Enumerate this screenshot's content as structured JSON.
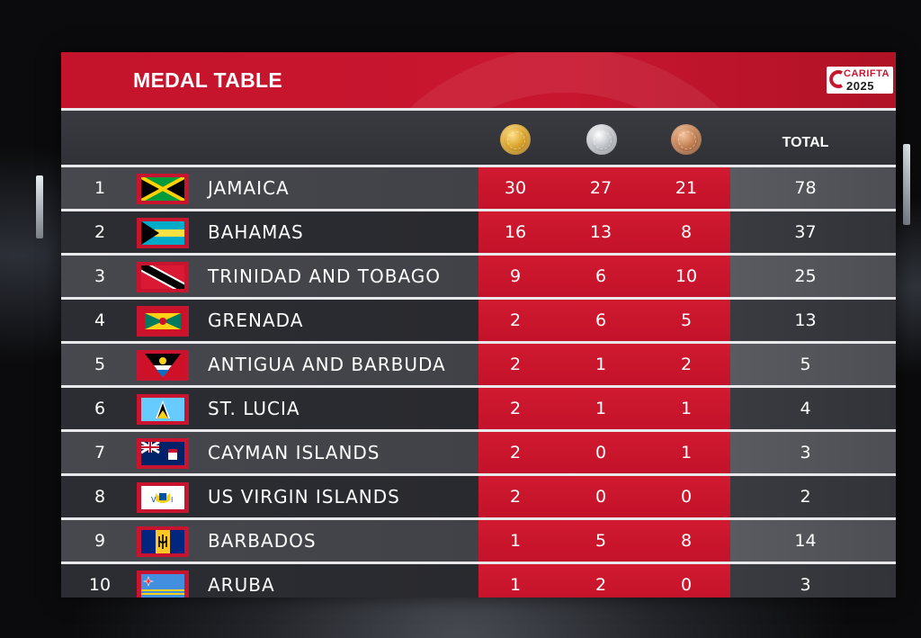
{
  "header": {
    "title": "MEDAL TABLE",
    "logo_top": "CARIFTA",
    "logo_year": "2025"
  },
  "columns": {
    "gold_icon": "gold-medal-icon",
    "silver_icon": "silver-medal-icon",
    "bronze_icon": "bronze-medal-icon",
    "total_label": "TOTAL"
  },
  "colors": {
    "accent_red": "#c8162f",
    "band_red": "#d01a30",
    "row_dark": "#2c2d32",
    "row_light": "#47484d"
  },
  "rows": [
    {
      "rank": "1",
      "country": "JAMAICA",
      "flag": "jamaica-flag-icon",
      "gold": "30",
      "silver": "27",
      "bronze": "21",
      "total": "78"
    },
    {
      "rank": "2",
      "country": "BAHAMAS",
      "flag": "bahamas-flag-icon",
      "gold": "16",
      "silver": "13",
      "bronze": "8",
      "total": "37"
    },
    {
      "rank": "3",
      "country": "TRINIDAD AND TOBAGO",
      "flag": "trinidad-and-tobago-flag-icon",
      "gold": "9",
      "silver": "6",
      "bronze": "10",
      "total": "25"
    },
    {
      "rank": "4",
      "country": "GRENADA",
      "flag": "grenada-flag-icon",
      "gold": "2",
      "silver": "6",
      "bronze": "5",
      "total": "13"
    },
    {
      "rank": "5",
      "country": "ANTIGUA AND BARBUDA",
      "flag": "antigua-and-barbuda-flag-icon",
      "gold": "2",
      "silver": "1",
      "bronze": "2",
      "total": "5"
    },
    {
      "rank": "6",
      "country": "ST. LUCIA",
      "flag": "st-lucia-flag-icon",
      "gold": "2",
      "silver": "1",
      "bronze": "1",
      "total": "4"
    },
    {
      "rank": "7",
      "country": "CAYMAN ISLANDS",
      "flag": "cayman-islands-flag-icon",
      "gold": "2",
      "silver": "0",
      "bronze": "1",
      "total": "3"
    },
    {
      "rank": "8",
      "country": "US VIRGIN ISLANDS",
      "flag": "us-virgin-islands-flag-icon",
      "gold": "2",
      "silver": "0",
      "bronze": "0",
      "total": "2"
    },
    {
      "rank": "9",
      "country": "BARBADOS",
      "flag": "barbados-flag-icon",
      "gold": "1",
      "silver": "5",
      "bronze": "8",
      "total": "14"
    },
    {
      "rank": "10",
      "country": "ARUBA",
      "flag": "aruba-flag-icon",
      "gold": "1",
      "silver": "2",
      "bronze": "0",
      "total": "3"
    }
  ]
}
